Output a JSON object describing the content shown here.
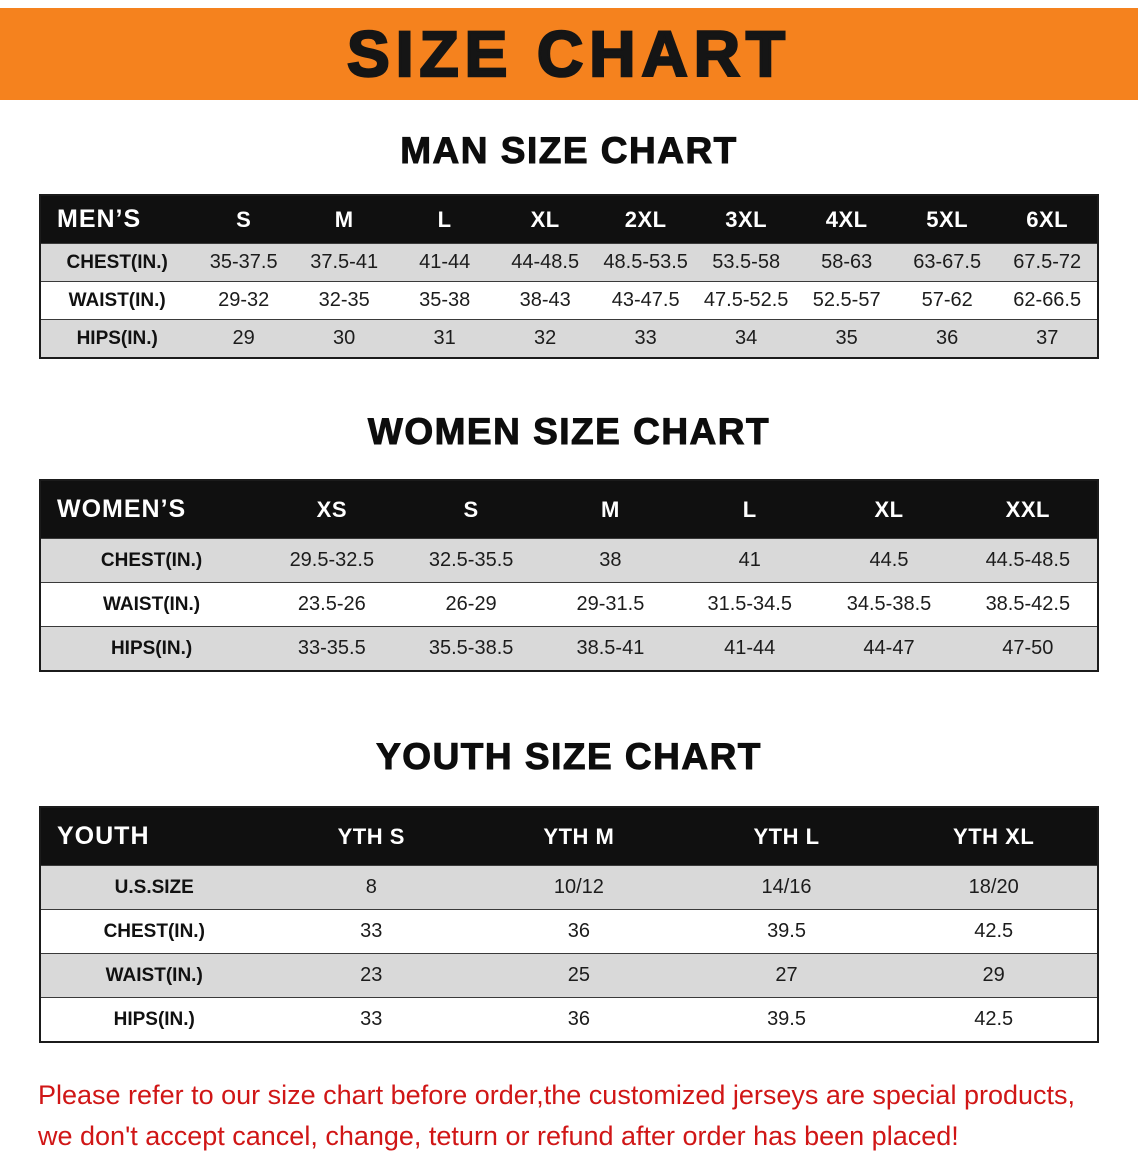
{
  "banner": {
    "title": "SIZE CHART"
  },
  "sections": [
    {
      "id": "men",
      "heading": "MAN SIZE CHART",
      "table": {
        "header": [
          "MEN’S",
          "S",
          "M",
          "L",
          "XL",
          "2XL",
          "3XL",
          "4XL",
          "5XL",
          "6XL"
        ],
        "rows": [
          [
            "CHEST(IN.)",
            "35-37.5",
            "37.5-41",
            "41-44",
            "44-48.5",
            "48.5-53.5",
            "53.5-58",
            "58-63",
            "63-67.5",
            "67.5-72"
          ],
          [
            "WAIST(IN.)",
            "29-32",
            "32-35",
            "35-38",
            "38-43",
            "43-47.5",
            "47.5-52.5",
            "52.5-57",
            "57-62",
            "62-66.5"
          ],
          [
            "HIPS(IN.)",
            "29",
            "30",
            "31",
            "32",
            "33",
            "34",
            "35",
            "36",
            "37"
          ]
        ]
      }
    },
    {
      "id": "women",
      "heading": "WOMEN SIZE CHART",
      "table": {
        "header": [
          "WOMEN’S",
          "XS",
          "S",
          "M",
          "L",
          "XL",
          "XXL"
        ],
        "rows": [
          [
            "CHEST(IN.)",
            "29.5-32.5",
            "32.5-35.5",
            "38",
            "41",
            "44.5",
            "44.5-48.5"
          ],
          [
            "WAIST(IN.)",
            "23.5-26",
            "26-29",
            "29-31.5",
            "31.5-34.5",
            "34.5-38.5",
            "38.5-42.5"
          ],
          [
            "HIPS(IN.)",
            "33-35.5",
            "35.5-38.5",
            "38.5-41",
            "41-44",
            "44-47",
            "47-50"
          ]
        ]
      }
    },
    {
      "id": "youth",
      "heading": "YOUTH SIZE CHART",
      "table": {
        "header": [
          "YOUTH",
          "YTH S",
          "YTH M",
          "YTH L",
          "YTH XL"
        ],
        "rows": [
          [
            "U.S.SIZE",
            "8",
            "10/12",
            "14/16",
            "18/20"
          ],
          [
            "CHEST(IN.)",
            "33",
            "36",
            "39.5",
            "42.5"
          ],
          [
            "WAIST(IN.)",
            "23",
            "25",
            "27",
            "29"
          ],
          [
            "HIPS(IN.)",
            "33",
            "36",
            "39.5",
            "42.5"
          ]
        ]
      }
    }
  ],
  "disclaimer": {
    "line1": "Please refer to our size chart before order,the customized jerseys are special products,",
    "line2": "we don't accept cancel, change, teturn or refund after order has been placed!"
  },
  "colors": {
    "banner_bg": "#f5821e",
    "banner_text": "#151515",
    "table_header_bg": "#101010",
    "table_header_text": "#ffffff",
    "row_stripe": "#d9d9d9",
    "row_plain": "#ffffff",
    "disclaimer_text": "#d01616"
  }
}
